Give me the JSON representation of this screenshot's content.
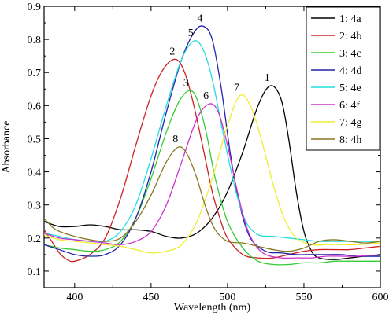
{
  "chart_data": {
    "type": "line",
    "xlabel": "Wavelength (nm)",
    "ylabel": "Absorbance",
    "xlim": [
      380,
      600
    ],
    "ylim": [
      0.05,
      0.9
    ],
    "xticks": [
      400,
      450,
      500,
      550,
      600
    ],
    "yticks": [
      0.1,
      0.2,
      0.3,
      0.4,
      0.5,
      0.6,
      0.7,
      0.8,
      0.9
    ],
    "xtick_labels": [
      "400",
      "450",
      "500",
      "550",
      "600"
    ],
    "ytick_labels": [
      "0.1",
      "0.2",
      "0.3",
      "0.4",
      "0.5",
      "0.6",
      "0.7",
      "0.8",
      "0.9"
    ],
    "grid": false,
    "legend_position": "top-right",
    "series": [
      {
        "name": "1: 4a",
        "curve_label": "1",
        "color": "#000000",
        "peak": [
          528,
          0.66
        ],
        "points": [
          [
            380,
            0.25
          ],
          [
            390,
            0.235
          ],
          [
            400,
            0.235
          ],
          [
            410,
            0.24
          ],
          [
            420,
            0.235
          ],
          [
            430,
            0.225
          ],
          [
            440,
            0.225
          ],
          [
            450,
            0.22
          ],
          [
            460,
            0.205
          ],
          [
            470,
            0.2
          ],
          [
            480,
            0.215
          ],
          [
            490,
            0.26
          ],
          [
            500,
            0.34
          ],
          [
            510,
            0.46
          ],
          [
            520,
            0.6
          ],
          [
            528,
            0.66
          ],
          [
            535,
            0.62
          ],
          [
            540,
            0.5
          ],
          [
            545,
            0.34
          ],
          [
            550,
            0.22
          ],
          [
            555,
            0.16
          ],
          [
            560,
            0.14
          ],
          [
            570,
            0.135
          ],
          [
            580,
            0.14
          ],
          [
            590,
            0.145
          ],
          [
            600,
            0.145
          ]
        ]
      },
      {
        "name": "2: 4b",
        "curve_label": "2",
        "color": "#cc2222",
        "peak": [
          466,
          0.74
        ],
        "points": [
          [
            380,
            0.225
          ],
          [
            385,
            0.19
          ],
          [
            390,
            0.155
          ],
          [
            395,
            0.135
          ],
          [
            400,
            0.13
          ],
          [
            410,
            0.15
          ],
          [
            420,
            0.2
          ],
          [
            430,
            0.32
          ],
          [
            440,
            0.48
          ],
          [
            450,
            0.63
          ],
          [
            458,
            0.71
          ],
          [
            466,
            0.74
          ],
          [
            472,
            0.7
          ],
          [
            478,
            0.6
          ],
          [
            485,
            0.45
          ],
          [
            490,
            0.34
          ],
          [
            495,
            0.26
          ],
          [
            500,
            0.2
          ],
          [
            510,
            0.15
          ],
          [
            520,
            0.14
          ],
          [
            530,
            0.14
          ],
          [
            540,
            0.15
          ],
          [
            550,
            0.16
          ],
          [
            560,
            0.165
          ],
          [
            570,
            0.165
          ],
          [
            580,
            0.165
          ],
          [
            590,
            0.17
          ],
          [
            600,
            0.175
          ]
        ]
      },
      {
        "name": "3: 4c",
        "curve_label": "3",
        "color": "#33cc33",
        "peak": [
          475,
          0.645
        ],
        "points": [
          [
            380,
            0.18
          ],
          [
            390,
            0.17
          ],
          [
            400,
            0.165
          ],
          [
            410,
            0.16
          ],
          [
            420,
            0.165
          ],
          [
            430,
            0.19
          ],
          [
            440,
            0.26
          ],
          [
            450,
            0.38
          ],
          [
            460,
            0.52
          ],
          [
            468,
            0.61
          ],
          [
            475,
            0.645
          ],
          [
            480,
            0.62
          ],
          [
            486,
            0.52
          ],
          [
            492,
            0.38
          ],
          [
            500,
            0.25
          ],
          [
            510,
            0.17
          ],
          [
            520,
            0.13
          ],
          [
            530,
            0.12
          ],
          [
            540,
            0.12
          ],
          [
            550,
            0.125
          ],
          [
            560,
            0.125
          ],
          [
            570,
            0.13
          ],
          [
            580,
            0.13
          ],
          [
            590,
            0.13
          ],
          [
            600,
            0.13
          ]
        ]
      },
      {
        "name": "4: 4d",
        "curve_label": "4",
        "color": "#2222aa",
        "peak": [
          484,
          0.84
        ],
        "points": [
          [
            380,
            0.18
          ],
          [
            390,
            0.165
          ],
          [
            400,
            0.15
          ],
          [
            410,
            0.145
          ],
          [
            420,
            0.15
          ],
          [
            430,
            0.18
          ],
          [
            440,
            0.26
          ],
          [
            450,
            0.4
          ],
          [
            460,
            0.58
          ],
          [
            470,
            0.74
          ],
          [
            478,
            0.82
          ],
          [
            484,
            0.84
          ],
          [
            490,
            0.8
          ],
          [
            496,
            0.65
          ],
          [
            502,
            0.45
          ],
          [
            508,
            0.3
          ],
          [
            515,
            0.2
          ],
          [
            525,
            0.16
          ],
          [
            535,
            0.155
          ],
          [
            545,
            0.15
          ],
          [
            555,
            0.15
          ],
          [
            565,
            0.15
          ],
          [
            575,
            0.15
          ],
          [
            585,
            0.145
          ],
          [
            600,
            0.145
          ]
        ]
      },
      {
        "name": "5: 4e",
        "curve_label": "5",
        "color": "#22dddd",
        "peak": [
          478,
          0.795
        ],
        "points": [
          [
            380,
            0.215
          ],
          [
            390,
            0.205
          ],
          [
            400,
            0.195
          ],
          [
            410,
            0.19
          ],
          [
            420,
            0.19
          ],
          [
            430,
            0.22
          ],
          [
            440,
            0.3
          ],
          [
            450,
            0.44
          ],
          [
            460,
            0.6
          ],
          [
            470,
            0.74
          ],
          [
            478,
            0.795
          ],
          [
            484,
            0.77
          ],
          [
            490,
            0.68
          ],
          [
            497,
            0.52
          ],
          [
            505,
            0.35
          ],
          [
            512,
            0.25
          ],
          [
            520,
            0.21
          ],
          [
            530,
            0.205
          ],
          [
            540,
            0.2
          ],
          [
            550,
            0.195
          ],
          [
            560,
            0.19
          ],
          [
            570,
            0.19
          ],
          [
            580,
            0.19
          ],
          [
            590,
            0.19
          ],
          [
            600,
            0.19
          ]
        ]
      },
      {
        "name": "6: 4f",
        "curve_label": "6",
        "color": "#cc33cc",
        "peak": [
          488,
          0.605
        ],
        "points": [
          [
            380,
            0.215
          ],
          [
            390,
            0.2
          ],
          [
            400,
            0.195
          ],
          [
            410,
            0.19
          ],
          [
            420,
            0.185
          ],
          [
            430,
            0.18
          ],
          [
            440,
            0.19
          ],
          [
            450,
            0.22
          ],
          [
            460,
            0.3
          ],
          [
            470,
            0.43
          ],
          [
            480,
            0.56
          ],
          [
            488,
            0.605
          ],
          [
            494,
            0.58
          ],
          [
            500,
            0.48
          ],
          [
            506,
            0.35
          ],
          [
            512,
            0.24
          ],
          [
            518,
            0.18
          ],
          [
            525,
            0.15
          ],
          [
            535,
            0.14
          ],
          [
            545,
            0.14
          ],
          [
            555,
            0.14
          ],
          [
            565,
            0.145
          ],
          [
            575,
            0.145
          ],
          [
            585,
            0.145
          ],
          [
            600,
            0.15
          ]
        ]
      },
      {
        "name": "7: 4g",
        "curve_label": "7",
        "color": "#eeee33",
        "peak": [
          508,
          0.63
        ],
        "points": [
          [
            380,
            0.21
          ],
          [
            390,
            0.195
          ],
          [
            400,
            0.19
          ],
          [
            410,
            0.185
          ],
          [
            420,
            0.18
          ],
          [
            430,
            0.175
          ],
          [
            440,
            0.165
          ],
          [
            450,
            0.155
          ],
          [
            460,
            0.16
          ],
          [
            470,
            0.18
          ],
          [
            480,
            0.25
          ],
          [
            490,
            0.38
          ],
          [
            500,
            0.54
          ],
          [
            508,
            0.63
          ],
          [
            515,
            0.6
          ],
          [
            522,
            0.5
          ],
          [
            530,
            0.36
          ],
          [
            537,
            0.26
          ],
          [
            545,
            0.2
          ],
          [
            555,
            0.18
          ],
          [
            565,
            0.18
          ],
          [
            575,
            0.18
          ],
          [
            585,
            0.18
          ],
          [
            600,
            0.185
          ]
        ]
      },
      {
        "name": "8: 4h",
        "curve_label": "8",
        "color": "#887722",
        "peak": [
          468,
          0.475
        ],
        "points": [
          [
            380,
            0.26
          ],
          [
            385,
            0.235
          ],
          [
            390,
            0.22
          ],
          [
            400,
            0.205
          ],
          [
            410,
            0.195
          ],
          [
            420,
            0.19
          ],
          [
            430,
            0.2
          ],
          [
            440,
            0.25
          ],
          [
            450,
            0.33
          ],
          [
            460,
            0.43
          ],
          [
            468,
            0.475
          ],
          [
            474,
            0.45
          ],
          [
            480,
            0.38
          ],
          [
            486,
            0.29
          ],
          [
            492,
            0.225
          ],
          [
            500,
            0.19
          ],
          [
            510,
            0.185
          ],
          [
            520,
            0.175
          ],
          [
            530,
            0.165
          ],
          [
            540,
            0.16
          ],
          [
            550,
            0.17
          ],
          [
            560,
            0.19
          ],
          [
            570,
            0.195
          ],
          [
            580,
            0.19
          ],
          [
            590,
            0.185
          ],
          [
            600,
            0.19
          ]
        ]
      }
    ]
  }
}
